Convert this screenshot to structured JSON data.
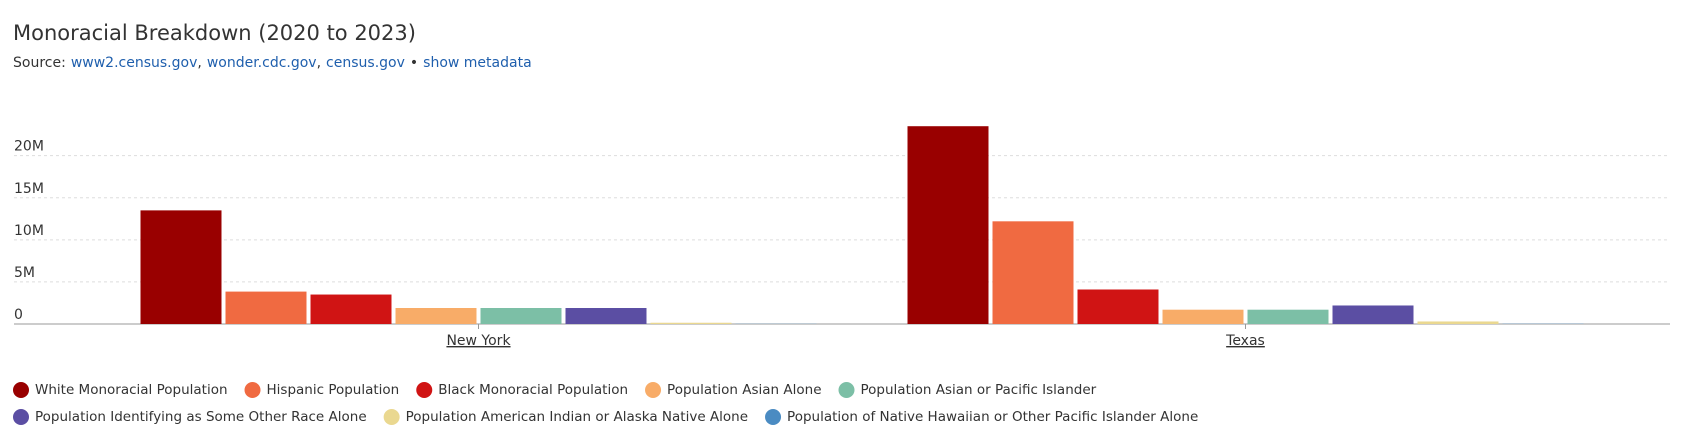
{
  "chart_data": {
    "type": "bar",
    "title": "Monoracial Breakdown (2020 to 2023)",
    "source_label": "Source:",
    "sources": [
      "www2.census.gov",
      "wonder.cdc.gov",
      "census.gov"
    ],
    "source_separator": ",",
    "bullet": "•",
    "metadata_link": "show metadata",
    "categories": [
      "New York",
      "Texas"
    ],
    "series": [
      {
        "name": "White Monoracial Population",
        "color": "#990000",
        "values": [
          13500000,
          23500000
        ]
      },
      {
        "name": "Hispanic Population",
        "color": "#f06a41",
        "values": [
          3850000,
          12200000
        ]
      },
      {
        "name": "Black Monoracial Population",
        "color": "#d01414",
        "values": [
          3500000,
          4100000
        ]
      },
      {
        "name": "Population Asian Alone",
        "color": "#f8ac68",
        "values": [
          1900000,
          1700000
        ]
      },
      {
        "name": "Population Asian or Pacific Islander",
        "color": "#7cbfa6",
        "values": [
          1900000,
          1700000
        ]
      },
      {
        "name": "Population Identifying as Some Other Race Alone",
        "color": "#5b4ea3",
        "values": [
          1900000,
          2200000
        ]
      },
      {
        "name": "Population American Indian or Alaska Native Alone",
        "color": "#ead890",
        "values": [
          150000,
          300000
        ]
      },
      {
        "name": "Population of Native Hawaiian or Other Pacific Islander Alone",
        "color": "#4a8bc2",
        "values": [
          20000,
          30000
        ]
      }
    ],
    "ylim": [
      0,
      24000000
    ],
    "yticks": [
      0,
      {
        "value": 5000000,
        "label": "5M"
      },
      {
        "value": 10000000,
        "label": "10M"
      },
      {
        "value": 15000000,
        "label": "15M"
      },
      {
        "value": 20000000,
        "label": "20M"
      }
    ],
    "grid": true,
    "legend": "bottom"
  }
}
